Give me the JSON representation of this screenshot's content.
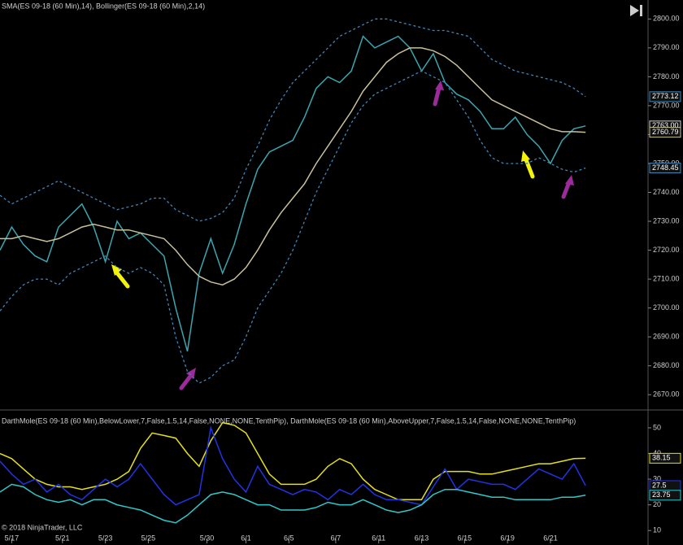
{
  "chart_data": [
    {
      "type": "line",
      "title": "SMA(ES 09-18 (60 Min),14), Bollinger(ES 09-18 (60 Min),2,14)",
      "x": [
        0,
        3,
        6,
        9,
        12,
        15,
        18,
        21,
        24,
        27,
        30,
        33,
        36,
        39,
        42,
        45,
        48,
        51,
        54,
        57,
        60,
        63,
        66,
        69,
        72,
        75,
        78,
        81,
        84,
        87,
        90,
        93,
        96,
        99,
        102,
        105,
        108,
        111,
        114,
        117,
        120,
        123,
        126,
        129,
        132,
        135,
        138,
        141,
        144,
        147,
        150
      ],
      "xlim": [
        0,
        166
      ],
      "ylim": [
        2665,
        2806
      ],
      "yticks": [
        {
          "value": 2670,
          "label": "2670.00"
        },
        {
          "value": 2680,
          "label": "2680.00"
        },
        {
          "value": 2690,
          "label": "2690.00"
        },
        {
          "value": 2700,
          "label": "2700.00"
        },
        {
          "value": 2710,
          "label": "2710.00"
        },
        {
          "value": 2720,
          "label": "2720.00"
        },
        {
          "value": 2730,
          "label": "2730.00"
        },
        {
          "value": 2740,
          "label": "2740.00"
        },
        {
          "value": 2750,
          "label": "2750.00"
        },
        {
          "value": 2760,
          "label": "2760.00"
        },
        {
          "value": 2770,
          "label": "2770.00"
        },
        {
          "value": 2780,
          "label": "2780.00"
        },
        {
          "value": 2790,
          "label": "2790.00"
        },
        {
          "value": 2800,
          "label": "2800.00"
        }
      ],
      "series": [
        {
          "color": "#3aa6b0",
          "dashed": false,
          "values": [
            2720,
            2728,
            2722,
            2718,
            2716,
            2728,
            2732,
            2736,
            2728,
            2716,
            2730,
            2724,
            2726,
            2722,
            2718,
            2700,
            2685,
            2712,
            2724,
            2712,
            2722,
            2736,
            2748,
            2754,
            2756,
            2758,
            2766,
            2776,
            2780,
            2778,
            2782,
            2794,
            2790,
            2792,
            2794,
            2790,
            2782,
            2788,
            2778,
            2774,
            2772,
            2768,
            2762,
            2762,
            2766,
            2760,
            2756,
            2750,
            2758,
            2762,
            2763
          ]
        },
        {
          "color": "#c8c09a",
          "dashed": false,
          "values": [
            2724,
            2724,
            2725,
            2724,
            2723,
            2724,
            2726,
            2728,
            2729,
            2728,
            2727,
            2727,
            2726,
            2725,
            2724,
            2720,
            2715,
            2711,
            2709,
            2708,
            2710,
            2714,
            2720,
            2727,
            2733,
            2738,
            2743,
            2750,
            2756,
            2762,
            2768,
            2775,
            2780,
            2785,
            2788,
            2790,
            2790,
            2789,
            2787,
            2784,
            2780,
            2776,
            2772,
            2770,
            2768,
            2766,
            2764,
            2762,
            2761,
            2761,
            2760.79
          ]
        },
        {
          "color": "#3f85b8",
          "dashed": true,
          "values": [
            2739,
            2736,
            2738,
            2740,
            2742,
            2744,
            2742,
            2740,
            2738,
            2736,
            2734,
            2735,
            2736,
            2738,
            2738,
            2734,
            2732,
            2730,
            2731,
            2733,
            2738,
            2748,
            2756,
            2765,
            2772,
            2778,
            2782,
            2786,
            2790,
            2794,
            2796,
            2798,
            2800,
            2800,
            2799,
            2798,
            2797,
            2796,
            2796,
            2795,
            2794,
            2790,
            2786,
            2784,
            2782,
            2781,
            2780,
            2779,
            2778,
            2776,
            2773.12
          ]
        },
        {
          "color": "#3f85b8",
          "dashed": true,
          "values": [
            2699,
            2704,
            2708,
            2710,
            2710,
            2708,
            2712,
            2714,
            2716,
            2718,
            2714,
            2712,
            2714,
            2712,
            2708,
            2690,
            2678,
            2674,
            2676,
            2680,
            2682,
            2690,
            2700,
            2706,
            2712,
            2720,
            2730,
            2740,
            2748,
            2756,
            2764,
            2770,
            2774,
            2776,
            2778,
            2780,
            2782,
            2780,
            2778,
            2772,
            2766,
            2758,
            2752,
            2750,
            2750,
            2750,
            2752,
            2750,
            2748,
            2747,
            2748.45
          ]
        }
      ],
      "markers": [
        {
          "value": 2773.12,
          "label": "2773.12",
          "color": "#3f85b8"
        },
        {
          "value": 2763,
          "label": "2763.00",
          "color": "#d0d0d0"
        },
        {
          "value": 2760.79,
          "label": "2760.79",
          "color": "#c8c09a"
        },
        {
          "value": 2748.45,
          "label": "2748.45",
          "color": "#3f85b8"
        }
      ]
    },
    {
      "type": "line",
      "title": "DarthMole(ES  09-18  (60  Min),BelowLower,7,False,1.5,14,False,NONE,NONE,TenthPip),  DarthMole(ES  09-18  (60  Min),AboveUpper,7,False,1.5,14,False,NONE,NONE,TenthPip)",
      "footer": "© 2018 NinjaTrader, LLC",
      "x": [
        0,
        3,
        6,
        9,
        12,
        15,
        18,
        21,
        24,
        27,
        30,
        33,
        36,
        39,
        42,
        45,
        48,
        51,
        54,
        57,
        60,
        63,
        66,
        69,
        72,
        75,
        78,
        81,
        84,
        87,
        90,
        93,
        96,
        99,
        102,
        105,
        108,
        111,
        114,
        117,
        120,
        123,
        126,
        129,
        132,
        135,
        138,
        141,
        144,
        147,
        150
      ],
      "xlim": [
        0,
        166
      ],
      "ylim": [
        5,
        56
      ],
      "xticks": [
        {
          "value": 3,
          "label": "5/17"
        },
        {
          "value": 16,
          "label": "5/21"
        },
        {
          "value": 27,
          "label": "5/23"
        },
        {
          "value": 38,
          "label": "5/25"
        },
        {
          "value": 53,
          "label": "5/30"
        },
        {
          "value": 63,
          "label": "6/1"
        },
        {
          "value": 74,
          "label": "6/5"
        },
        {
          "value": 86,
          "label": "6/7"
        },
        {
          "value": 97,
          "label": "6/11"
        },
        {
          "value": 108,
          "label": "6/13"
        },
        {
          "value": 119,
          "label": "6/15"
        },
        {
          "value": 130,
          "label": "6/19"
        },
        {
          "value": 141,
          "label": "6/21"
        }
      ],
      "yticks": [
        10,
        20,
        30,
        40,
        50
      ],
      "series": [
        {
          "color": "#e5e019",
          "dashed": false,
          "values": [
            40,
            38,
            34,
            30,
            28,
            27,
            27,
            26,
            27,
            28,
            30,
            33,
            42,
            48,
            47,
            46,
            40,
            35,
            45,
            52,
            51,
            48,
            40,
            32,
            28,
            28,
            28,
            30,
            35,
            38,
            36,
            30,
            26,
            24,
            22,
            22,
            22,
            30,
            33,
            33,
            33,
            32,
            32,
            33,
            34,
            35,
            36,
            36,
            37,
            38,
            38.15
          ]
        },
        {
          "color": "#2233e6",
          "dashed": false,
          "values": [
            37,
            32,
            28,
            30,
            25,
            28,
            24,
            22,
            26,
            30,
            27,
            30,
            36,
            30,
            24,
            20,
            22,
            24,
            50,
            38,
            30,
            25,
            35,
            28,
            26,
            24,
            26,
            25,
            22,
            26,
            24,
            28,
            24,
            22,
            22,
            21,
            20,
            27,
            34,
            26,
            30,
            29,
            28,
            28,
            26,
            30,
            34,
            32,
            30,
            36,
            27.5
          ]
        },
        {
          "color": "#30c8c8",
          "dashed": false,
          "values": [
            25,
            28,
            27,
            24,
            22,
            21,
            22,
            20,
            22,
            22,
            20,
            19,
            18,
            16,
            14,
            13,
            16,
            20,
            24,
            25,
            24,
            22,
            20,
            20,
            18,
            18,
            18,
            19,
            21,
            20,
            20,
            22,
            20,
            18,
            17,
            18,
            20,
            24,
            26,
            26,
            25,
            24,
            23,
            23,
            22,
            22,
            22,
            22,
            23,
            23,
            23.75
          ]
        }
      ],
      "markers": [
        {
          "value": 38.15,
          "label": "38.15",
          "color": "#e5e019"
        },
        {
          "value": 27.5,
          "label": "27.5",
          "color": "#2233e6"
        },
        {
          "value": 23.75,
          "label": "23.75",
          "color": "#30c8c8"
        }
      ]
    }
  ]
}
